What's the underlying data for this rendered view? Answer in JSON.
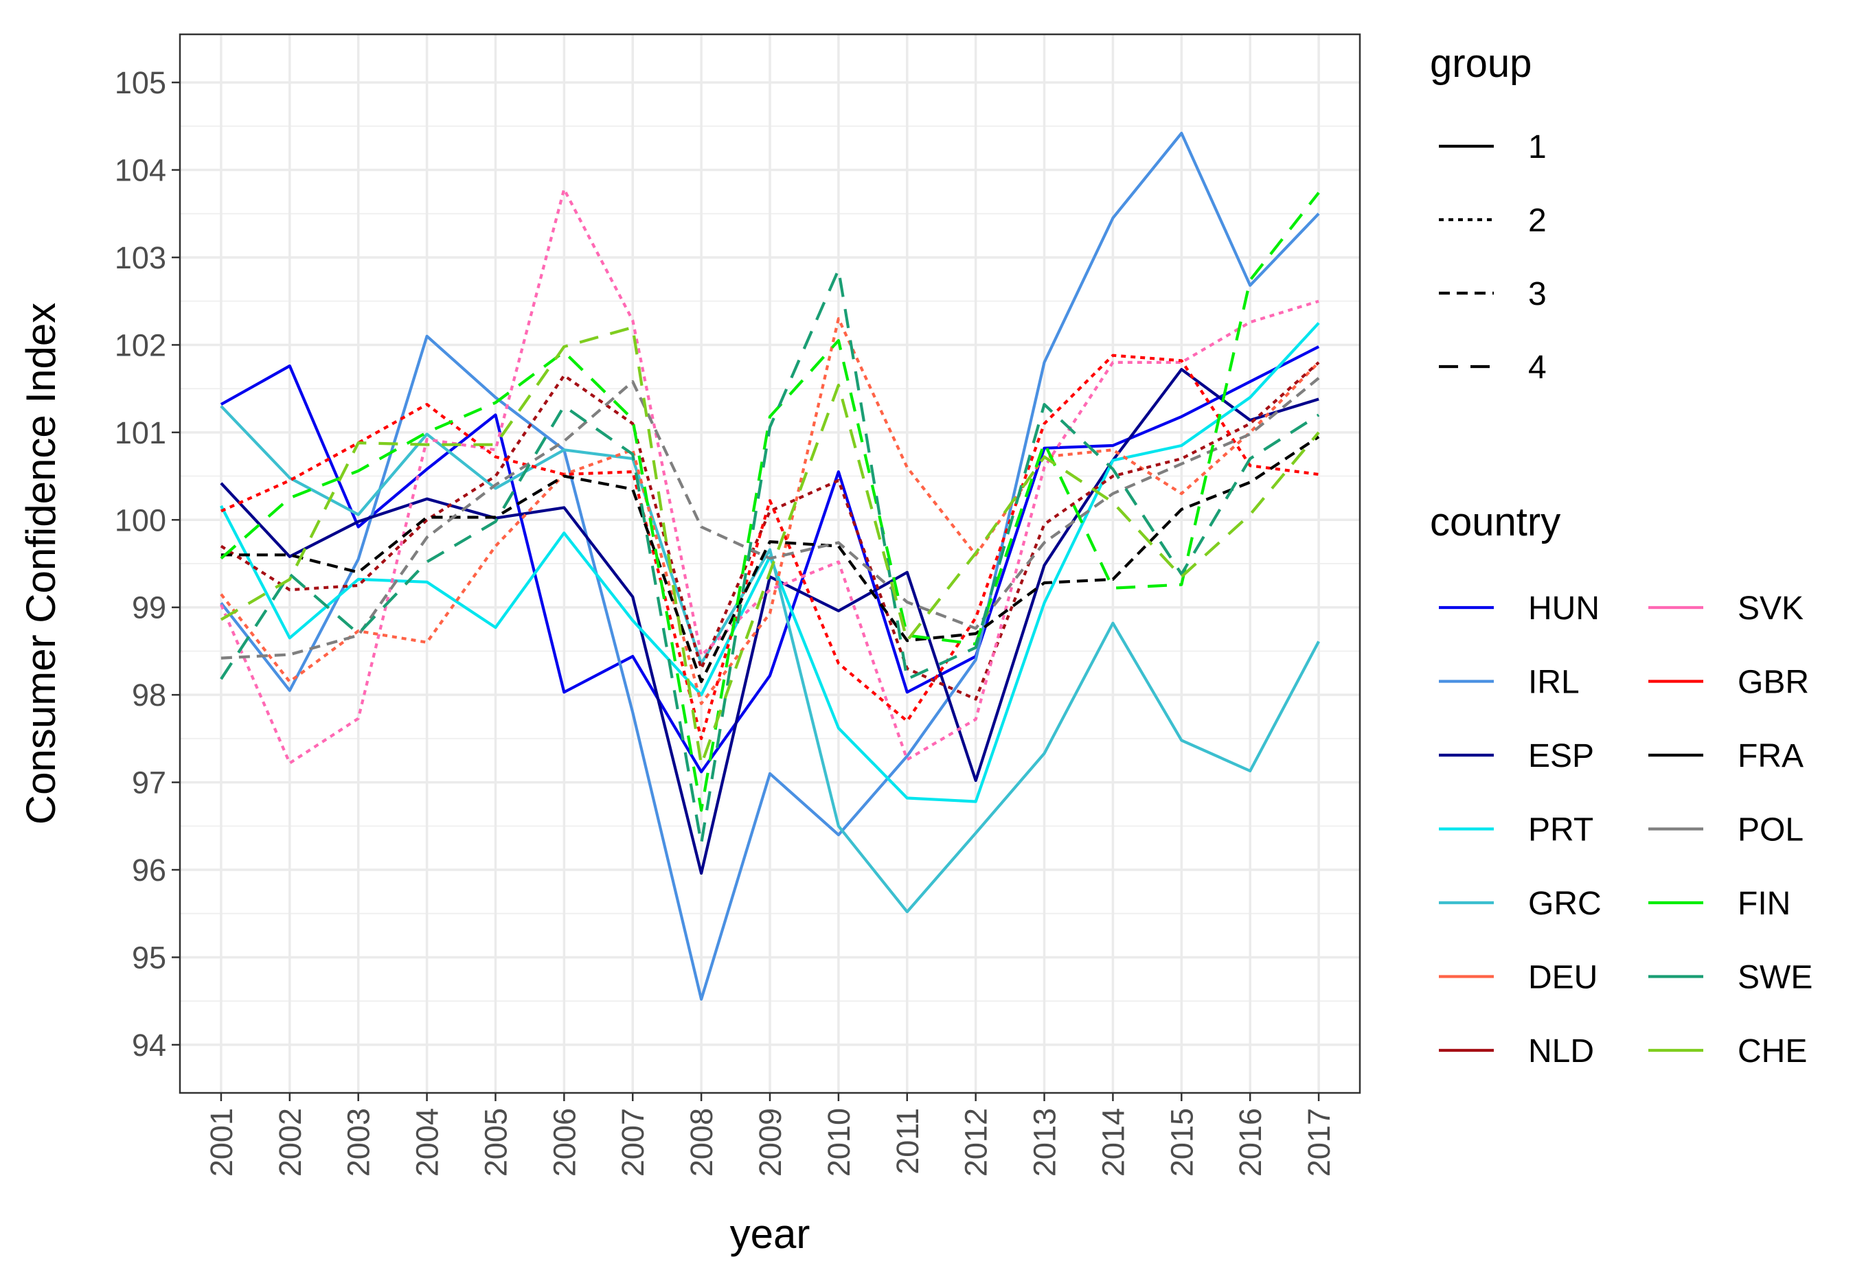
{
  "chart_data": {
    "type": "line",
    "title": "",
    "xlabel": "year",
    "ylabel": "Consumer Confidence Index",
    "x": [
      2001,
      2002,
      2003,
      2004,
      2005,
      2006,
      2007,
      2008,
      2009,
      2010,
      2011,
      2012,
      2013,
      2014,
      2015,
      2016,
      2017
    ],
    "x_tick_labels": [
      "2001",
      "2002",
      "2003",
      "2004",
      "2005",
      "2006",
      "2007",
      "2008",
      "2009",
      "2010",
      "2011",
      "2012",
      "2013",
      "2014",
      "2015",
      "2016",
      "2017"
    ],
    "ylim": [
      93.45,
      105.55
    ],
    "y_ticks": [
      94,
      95,
      96,
      97,
      98,
      99,
      100,
      101,
      102,
      103,
      104,
      105
    ],
    "y_tick_labels": [
      "94",
      "95",
      "96",
      "97",
      "98",
      "99",
      "100",
      "101",
      "102",
      "103",
      "104",
      "105"
    ],
    "grid": true,
    "legend": {
      "placement": "right",
      "group_title": "group",
      "groups": [
        {
          "label": "1",
          "dash": "solid"
        },
        {
          "label": "2",
          "dash": "dotted"
        },
        {
          "label": "3",
          "dash": "dashed"
        },
        {
          "label": "4",
          "dash": "longdash"
        }
      ],
      "country_title": "country"
    },
    "series": [
      {
        "name": "HUN",
        "color": "#0000ee",
        "group": 1,
        "values": [
          101.32,
          101.76,
          99.92,
          100.58,
          101.2,
          98.03,
          98.44,
          97.12,
          98.22,
          100.55,
          98.03,
          98.44,
          100.82,
          100.85,
          101.18,
          101.58,
          101.98
        ]
      },
      {
        "name": "IRL",
        "color": "#4a90e2",
        "group": 1,
        "values": [
          99.05,
          98.05,
          99.55,
          102.1,
          101.4,
          100.8,
          97.8,
          94.52,
          97.1,
          96.4,
          97.3,
          98.4,
          101.8,
          103.45,
          104.42,
          102.68,
          103.5
        ]
      },
      {
        "name": "ESP",
        "color": "#00008b",
        "group": 1,
        "values": [
          100.42,
          99.58,
          99.98,
          100.24,
          100.02,
          100.14,
          99.12,
          95.96,
          99.35,
          98.96,
          99.4,
          97.02,
          99.48,
          100.68,
          101.72,
          101.14,
          101.38
        ]
      },
      {
        "name": "PRT",
        "color": "#00e5ee",
        "group": 1,
        "values": [
          100.16,
          98.65,
          99.32,
          99.29,
          98.77,
          99.85,
          98.85,
          98.0,
          99.58,
          97.62,
          96.82,
          96.78,
          99.05,
          100.68,
          100.85,
          101.4,
          102.25
        ]
      },
      {
        "name": "GRC",
        "color": "#3cbfcf",
        "group": 1,
        "values": [
          101.3,
          100.48,
          100.06,
          100.98,
          100.36,
          100.8,
          100.7,
          98.36,
          99.66,
          96.5,
          95.52,
          96.42,
          97.33,
          98.82,
          97.48,
          97.13,
          98.61
        ]
      },
      {
        "name": "DEU",
        "color": "#ff6347",
        "group": 2,
        "values": [
          99.15,
          98.15,
          98.73,
          98.6,
          99.7,
          100.52,
          100.8,
          97.9,
          98.93,
          102.3,
          100.6,
          99.6,
          100.72,
          100.8,
          100.3,
          101.0,
          101.8
        ]
      },
      {
        "name": "NLD",
        "color": "#a50f15",
        "group": 2,
        "values": [
          99.7,
          99.2,
          99.25,
          100.0,
          100.5,
          101.65,
          101.1,
          98.3,
          100.1,
          100.45,
          98.3,
          97.95,
          99.95,
          100.5,
          100.7,
          101.1,
          101.8
        ]
      },
      {
        "name": "SVK",
        "color": "#ff69b4",
        "group": 2,
        "values": [
          99.03,
          97.22,
          97.73,
          100.92,
          100.8,
          103.78,
          102.28,
          98.45,
          99.2,
          99.52,
          97.26,
          97.72,
          100.6,
          101.8,
          101.8,
          102.26,
          102.5
        ]
      },
      {
        "name": "GBR",
        "color": "#ff0000",
        "group": 2,
        "values": [
          100.1,
          100.45,
          100.88,
          101.32,
          100.72,
          100.52,
          100.55,
          97.5,
          100.22,
          98.36,
          97.7,
          98.88,
          101.1,
          101.88,
          101.82,
          100.62,
          100.52
        ]
      },
      {
        "name": "FRA",
        "color": "#000000",
        "group": 3,
        "values": [
          99.6,
          99.6,
          99.4,
          100.03,
          100.03,
          100.5,
          100.35,
          98.15,
          99.75,
          99.7,
          98.62,
          98.7,
          99.28,
          99.32,
          100.12,
          100.43,
          100.95
        ]
      },
      {
        "name": "POL",
        "color": "#7f7f7f",
        "group": 3,
        "values": [
          98.42,
          98.46,
          98.68,
          99.8,
          100.4,
          100.9,
          101.58,
          99.92,
          99.56,
          99.74,
          99.06,
          98.76,
          99.74,
          100.3,
          100.64,
          100.98,
          101.62
        ]
      },
      {
        "name": "FIN",
        "color": "#00ee00",
        "group": 4,
        "values": [
          99.56,
          100.25,
          100.56,
          101.0,
          101.34,
          101.92,
          101.15,
          96.68,
          101.18,
          102.05,
          98.68,
          98.58,
          100.88,
          99.22,
          99.26,
          102.74,
          103.74
        ]
      },
      {
        "name": "SWE",
        "color": "#1a9e74",
        "group": 4,
        "values": [
          98.18,
          99.38,
          98.7,
          99.52,
          99.98,
          101.3,
          100.75,
          96.3,
          101.06,
          102.86,
          98.18,
          98.54,
          101.32,
          100.58,
          99.38,
          100.7,
          101.2
        ]
      },
      {
        "name": "CHE",
        "color": "#7fcd1f",
        "group": 4,
        "values": [
          98.86,
          99.32,
          100.88,
          100.86,
          100.86,
          101.98,
          102.2,
          97.2,
          99.4,
          101.54,
          98.62,
          99.62,
          100.72,
          100.2,
          99.35,
          100.06,
          101.0
        ]
      }
    ],
    "legend_columns": [
      [
        "HUN",
        "IRL",
        "ESP",
        "PRT",
        "GRC",
        "DEU",
        "NLD"
      ],
      [
        "SVK",
        "GBR",
        "FRA",
        "POL",
        "FIN",
        "SWE",
        "CHE"
      ]
    ]
  }
}
